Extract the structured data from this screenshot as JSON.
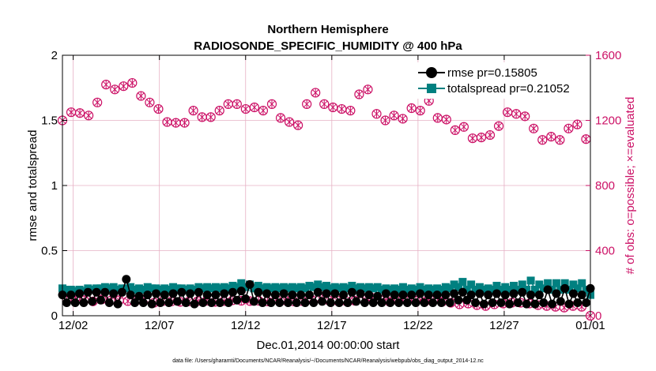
{
  "chart_data": {
    "type": "line",
    "title": "Northern Hemisphere",
    "subtitle": "RADIOSONDE_SPECIFIC_HUMIDITY @ 400 hPa",
    "xlabel": "Dec.01,2014 00:00:00 start",
    "ylabel_left": "rmse and totalspread",
    "ylabel_right": "# of obs: o=possible; ×=evaluated",
    "footer": "data file: /Users/gharamti/Documents/NCAR/Reanalysis/~/Documents/NCAR/Reanalysis/webpub/obs_diag_output_2014-12.nc",
    "x_tick_labels": [
      "12/02",
      "12/07",
      "12/12",
      "12/17",
      "12/22",
      "12/27",
      "01/01"
    ],
    "x_tick_days": [
      1,
      6,
      11,
      16,
      21,
      26,
      31
    ],
    "xlim_days": [
      0.375,
      31.0
    ],
    "ylim_left": [
      0,
      2
    ],
    "yticks_left": [
      "0",
      "0.5",
      "1",
      "1.5",
      "2"
    ],
    "ylim_right": [
      0,
      1600
    ],
    "yticks_right": [
      "0",
      "400",
      "800",
      "1200",
      "1600"
    ],
    "colors": {
      "rmse": "#000000",
      "totalspread": "#008080",
      "obs": "#cc1166",
      "grid": "#e6b0c4"
    },
    "legend": {
      "rmse_label": "rmse pr=0.15805",
      "spread_label": "totalspread pr=0.21052"
    },
    "series": [
      {
        "name": "rmse",
        "values": [
          0.16,
          0.1,
          0.16,
          0.1,
          0.17,
          0.1,
          0.18,
          0.11,
          0.18,
          0.12,
          0.18,
          0.1,
          0.17,
          0.09,
          0.18,
          0.28,
          0.16,
          0.1,
          0.15,
          0.1,
          0.16,
          0.09,
          0.17,
          0.1,
          0.16,
          0.1,
          0.17,
          0.11,
          0.18,
          0.1,
          0.17,
          0.09,
          0.18,
          0.1,
          0.16,
          0.1,
          0.16,
          0.1,
          0.17,
          0.1,
          0.18,
          0.12,
          0.19,
          0.13,
          0.24,
          0.11,
          0.18,
          0.1,
          0.17,
          0.1,
          0.16,
          0.1,
          0.17,
          0.1,
          0.16,
          0.1,
          0.16,
          0.1,
          0.16,
          0.1,
          0.18,
          0.11,
          0.17,
          0.1,
          0.17,
          0.1,
          0.16,
          0.1,
          0.18,
          0.11,
          0.17,
          0.1,
          0.16,
          0.1,
          0.15,
          0.1,
          0.17,
          0.1,
          0.16,
          0.1,
          0.16,
          0.1,
          0.16,
          0.1,
          0.17,
          0.1,
          0.16,
          0.1,
          0.16,
          0.1,
          0.16,
          0.1,
          0.17,
          0.12,
          0.18,
          0.12,
          0.16,
          0.1,
          0.17,
          0.09,
          0.16,
          0.1,
          0.17,
          0.1,
          0.16,
          0.09,
          0.17,
          0.1,
          0.18,
          0.09,
          0.16,
          0.09,
          0.16,
          0.1,
          0.2,
          0.09,
          0.17,
          0.11,
          0.21,
          0.09,
          0.17,
          0.1,
          0.16,
          0.1,
          0.21
        ]
      },
      {
        "name": "totalspread",
        "values": [
          0.21,
          0.2,
          0.2,
          0.19,
          0.2,
          0.19,
          0.21,
          0.2,
          0.21,
          0.21,
          0.22,
          0.21,
          0.22,
          0.2,
          0.21,
          0.21,
          0.22,
          0.2,
          0.21,
          0.2,
          0.22,
          0.21,
          0.21,
          0.2,
          0.21,
          0.2,
          0.22,
          0.21,
          0.21,
          0.2,
          0.21,
          0.2,
          0.22,
          0.21,
          0.22,
          0.21,
          0.22,
          0.21,
          0.22,
          0.21,
          0.23,
          0.22,
          0.25,
          0.22,
          0.24,
          0.21,
          0.23,
          0.21,
          0.22,
          0.21,
          0.22,
          0.21,
          0.22,
          0.21,
          0.22,
          0.21,
          0.22,
          0.21,
          0.23,
          0.22,
          0.24,
          0.22,
          0.23,
          0.21,
          0.22,
          0.21,
          0.22,
          0.21,
          0.23,
          0.21,
          0.22,
          0.21,
          0.22,
          0.21,
          0.22,
          0.2,
          0.21,
          0.2,
          0.21,
          0.2,
          0.22,
          0.2,
          0.21,
          0.2,
          0.22,
          0.2,
          0.21,
          0.2,
          0.21,
          0.2,
          0.22,
          0.21,
          0.24,
          0.22,
          0.26,
          0.2,
          0.24,
          0.2,
          0.22,
          0.2,
          0.21,
          0.2,
          0.23,
          0.2,
          0.22,
          0.2,
          0.23,
          0.2,
          0.24,
          0.2,
          0.27,
          0.2,
          0.24,
          0.21,
          0.25,
          0.2,
          0.25,
          0.2,
          0.25,
          0.2,
          0.24,
          0.21,
          0.25,
          0.2,
          0.16
        ]
      },
      {
        "name": "obs_possible",
        "axis": "right",
        "values": [
          1200,
          95,
          1250,
          110,
          1245,
          95,
          1230,
          88,
          1310,
          100,
          1420,
          92,
          1390,
          95,
          1410,
          90,
          1430,
          95,
          1350,
          100,
          1310,
          80,
          1270,
          90,
          1190,
          88,
          1185,
          85,
          1185,
          88,
          1260,
          90,
          1220,
          92,
          1220,
          85,
          1260,
          90,
          1300,
          95,
          1300,
          92,
          1270,
          90,
          1280,
          92,
          1260,
          88,
          1300,
          100,
          1215,
          95,
          1190,
          88,
          1170,
          90,
          1300,
          100,
          1370,
          105,
          1300,
          95,
          1280,
          92,
          1270,
          90,
          1260,
          92,
          1360,
          100,
          1390,
          110,
          1240,
          95,
          1200,
          85,
          1230,
          88,
          1210,
          90,
          1275,
          92,
          1260,
          85,
          1320,
          95,
          1215,
          85,
          1205,
          80,
          1140,
          70,
          1160,
          75,
          1090,
          65,
          1095,
          60,
          1110,
          70,
          1165,
          75,
          1250,
          80,
          1240,
          80,
          1225,
          75,
          1150,
          65,
          1080,
          60,
          1100,
          55,
          1080,
          50,
          1150,
          60,
          1175,
          55,
          1085,
          0
        ]
      },
      {
        "name": "obs_evaluated",
        "axis": "right",
        "values": [
          1200,
          95,
          1250,
          110,
          1245,
          95,
          1230,
          88,
          1310,
          100,
          1420,
          92,
          1390,
          95,
          1410,
          90,
          1430,
          95,
          1350,
          100,
          1310,
          80,
          1270,
          90,
          1190,
          88,
          1185,
          85,
          1185,
          88,
          1260,
          90,
          1220,
          92,
          1220,
          85,
          1260,
          90,
          1300,
          95,
          1300,
          92,
          1270,
          90,
          1280,
          92,
          1260,
          88,
          1300,
          100,
          1215,
          95,
          1190,
          88,
          1170,
          90,
          1300,
          100,
          1370,
          105,
          1300,
          95,
          1280,
          92,
          1270,
          90,
          1260,
          92,
          1360,
          100,
          1390,
          110,
          1240,
          95,
          1200,
          85,
          1230,
          88,
          1210,
          90,
          1275,
          92,
          1260,
          85,
          1320,
          95,
          1215,
          85,
          1205,
          80,
          1140,
          70,
          1160,
          75,
          1090,
          65,
          1095,
          60,
          1110,
          70,
          1165,
          75,
          1250,
          80,
          1240,
          80,
          1225,
          75,
          1150,
          65,
          1080,
          60,
          1100,
          55,
          1080,
          50,
          1150,
          60,
          1175,
          55,
          1085,
          0
        ]
      }
    ]
  }
}
